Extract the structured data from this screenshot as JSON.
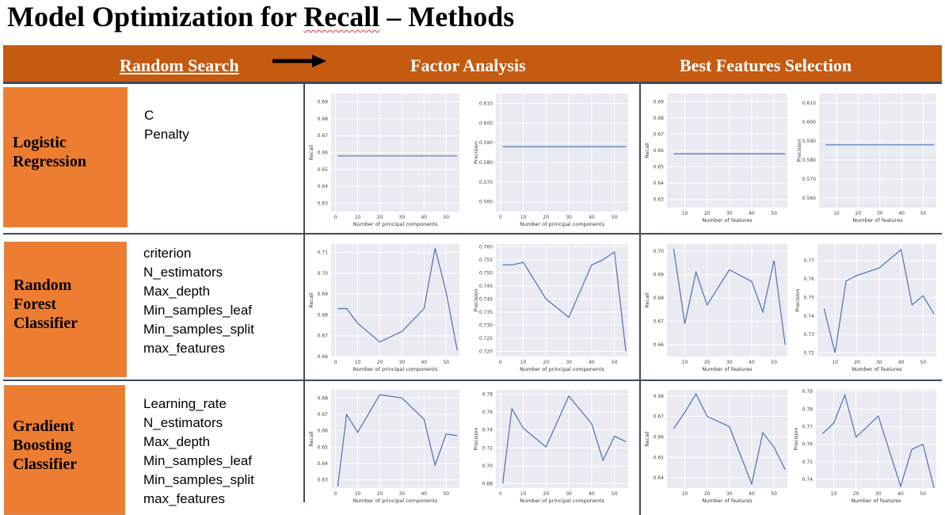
{
  "title": {
    "pre": "Model Optimization for ",
    "squiggle": "Recall",
    "post": "  – Methods"
  },
  "header": {
    "random_search": "Random Search",
    "factor_analysis": "Factor Analysis",
    "best_features": "Best Features Selection"
  },
  "rows": [
    {
      "label_lines": [
        "Logistic",
        "Regression"
      ],
      "params": [
        "C",
        "Penalty"
      ]
    },
    {
      "label_lines": [
        "Random",
        "Forest",
        "Classifier"
      ],
      "params": [
        "criterion",
        "N_estimators",
        "Max_depth",
        "Min_samples_leaf",
        "Min_samples_split",
        "max_features"
      ]
    },
    {
      "label_lines": [
        "Gradient",
        "Boosting",
        "Classifier"
      ],
      "params": [
        "Learning_rate",
        "N_estimators",
        "Max_depth",
        "Min_samples_leaf",
        "Min_samples_split",
        "max_features"
      ]
    }
  ],
  "colors": {
    "header_bar": "#c55a11",
    "row_label": "#ed7d31",
    "plot_bg": "#eaeaf2",
    "line": "#4c72b0"
  },
  "chart_data": [
    {
      "id": "lr-fa-recall",
      "type": "line",
      "xlabel": "Number of principal components",
      "ylabel": "Recall",
      "xlim": [
        -2,
        56
      ],
      "ylim": [
        0.625,
        0.695
      ],
      "xticks": [
        0,
        10,
        20,
        30,
        40,
        50
      ],
      "yticks": [
        0.63,
        0.64,
        0.65,
        0.66,
        0.67,
        0.68,
        0.69
      ],
      "x": [
        1,
        55
      ],
      "y": [
        0.658,
        0.658
      ]
    },
    {
      "id": "lr-fa-precision",
      "type": "line",
      "xlabel": "Number of principal components",
      "ylabel": "Precision",
      "xlim": [
        -2,
        56
      ],
      "ylim": [
        0.555,
        0.615
      ],
      "xticks": [
        0,
        10,
        20,
        30,
        40,
        50
      ],
      "yticks": [
        0.56,
        0.57,
        0.58,
        0.59,
        0.6,
        0.61
      ],
      "x": [
        1,
        55
      ],
      "y": [
        0.588,
        0.588
      ]
    },
    {
      "id": "lr-bf-recall",
      "type": "line",
      "xlabel": "Number of features",
      "ylabel": "Recall",
      "xlim": [
        2,
        56
      ],
      "ylim": [
        0.625,
        0.695
      ],
      "xticks": [
        10,
        20,
        30,
        40,
        50
      ],
      "yticks": [
        0.63,
        0.64,
        0.65,
        0.66,
        0.67,
        0.68,
        0.69
      ],
      "x": [
        5,
        55
      ],
      "y": [
        0.658,
        0.658
      ]
    },
    {
      "id": "lr-bf-precision",
      "type": "line",
      "xlabel": "Number of features",
      "ylabel": "Precision",
      "xlim": [
        2,
        56
      ],
      "ylim": [
        0.555,
        0.615
      ],
      "xticks": [
        10,
        20,
        30,
        40,
        50
      ],
      "yticks": [
        0.56,
        0.57,
        0.58,
        0.59,
        0.6,
        0.61
      ],
      "x": [
        5,
        55
      ],
      "y": [
        0.588,
        0.588
      ]
    },
    {
      "id": "rf-fa-recall",
      "type": "line",
      "xlabel": "Number of principal components",
      "ylabel": "Recall",
      "xlim": [
        -2,
        56
      ],
      "ylim": [
        0.66,
        0.714
      ],
      "xticks": [
        0,
        10,
        20,
        30,
        40,
        50
      ],
      "yticks": [
        0.66,
        0.67,
        0.68,
        0.69,
        0.7,
        0.71
      ],
      "x": [
        1,
        5,
        10,
        20,
        30,
        40,
        45,
        50,
        55
      ],
      "y": [
        0.683,
        0.683,
        0.676,
        0.667,
        0.672,
        0.683,
        0.712,
        0.691,
        0.663
      ]
    },
    {
      "id": "rf-fa-precision",
      "type": "line",
      "xlabel": "Number of principal components",
      "ylabel": "Precision",
      "xlim": [
        -2,
        56
      ],
      "ylim": [
        0.718,
        0.761
      ],
      "xticks": [
        0,
        10,
        20,
        30,
        40,
        50
      ],
      "yticks": [
        0.72,
        0.725,
        0.73,
        0.735,
        0.74,
        0.745,
        0.75,
        0.755,
        0.76
      ],
      "x": [
        1,
        5,
        10,
        20,
        30,
        40,
        45,
        50,
        55
      ],
      "y": [
        0.753,
        0.753,
        0.754,
        0.74,
        0.733,
        0.753,
        0.755,
        0.758,
        0.72
      ]
    },
    {
      "id": "rf-bf-recall",
      "type": "line",
      "xlabel": "Number of features",
      "ylabel": "Recall",
      "xlim": [
        2,
        56
      ],
      "ylim": [
        0.655,
        0.703
      ],
      "xticks": [
        10,
        20,
        30,
        40,
        50
      ],
      "yticks": [
        0.66,
        0.67,
        0.68,
        0.69,
        0.7
      ],
      "x": [
        5,
        10,
        15,
        20,
        30,
        40,
        45,
        50,
        55
      ],
      "y": [
        0.701,
        0.669,
        0.691,
        0.677,
        0.692,
        0.687,
        0.674,
        0.696,
        0.66
      ]
    },
    {
      "id": "rf-bf-precision",
      "type": "line",
      "xlabel": "Number of features",
      "ylabel": "Precision",
      "xlim": [
        2,
        56
      ],
      "ylim": [
        0.718,
        0.779
      ],
      "xticks": [
        10,
        20,
        30,
        40,
        50
      ],
      "yticks": [
        0.72,
        0.73,
        0.74,
        0.75,
        0.76,
        0.77
      ],
      "x": [
        5,
        10,
        15,
        20,
        30,
        40,
        45,
        50,
        55
      ],
      "y": [
        0.744,
        0.72,
        0.759,
        0.762,
        0.766,
        0.776,
        0.746,
        0.751,
        0.741
      ]
    },
    {
      "id": "gb-fa-recall",
      "type": "line",
      "xlabel": "Number of principal components",
      "ylabel": "Recall",
      "xlim": [
        -2,
        56
      ],
      "ylim": [
        0.625,
        0.685
      ],
      "xticks": [
        0,
        10,
        20,
        30,
        40,
        50
      ],
      "yticks": [
        0.63,
        0.64,
        0.65,
        0.66,
        0.67,
        0.68
      ],
      "x": [
        1,
        5,
        10,
        20,
        30,
        40,
        45,
        50,
        55
      ],
      "y": [
        0.626,
        0.67,
        0.659,
        0.682,
        0.68,
        0.667,
        0.639,
        0.658,
        0.657
      ]
    },
    {
      "id": "gb-fa-precision",
      "type": "line",
      "xlabel": "Number of principal components",
      "ylabel": "Precision",
      "xlim": [
        -2,
        56
      ],
      "ylim": [
        0.675,
        0.785
      ],
      "xticks": [
        0,
        10,
        20,
        30,
        40,
        50
      ],
      "yticks": [
        0.68,
        0.7,
        0.72,
        0.74,
        0.76,
        0.78
      ],
      "x": [
        1,
        5,
        10,
        20,
        30,
        40,
        45,
        50,
        55
      ],
      "y": [
        0.68,
        0.764,
        0.742,
        0.721,
        0.778,
        0.747,
        0.706,
        0.733,
        0.727
      ]
    },
    {
      "id": "gb-bf-recall",
      "type": "line",
      "xlabel": "Number of features",
      "ylabel": "Recall",
      "xlim": [
        2,
        56
      ],
      "ylim": [
        0.635,
        0.683
      ],
      "xticks": [
        10,
        20,
        30,
        40,
        50
      ],
      "yticks": [
        0.64,
        0.65,
        0.66,
        0.67,
        0.68
      ],
      "x": [
        5,
        10,
        15,
        20,
        30,
        40,
        45,
        50,
        55
      ],
      "y": [
        0.664,
        0.672,
        0.681,
        0.67,
        0.665,
        0.637,
        0.662,
        0.655,
        0.644
      ]
    },
    {
      "id": "gb-bf-precision",
      "type": "line",
      "xlabel": "Number of features",
      "ylabel": "Precision",
      "xlim": [
        2,
        56
      ],
      "ylim": [
        0.735,
        0.791
      ],
      "xticks": [
        10,
        20,
        30,
        40,
        50
      ],
      "yticks": [
        0.74,
        0.75,
        0.76,
        0.77,
        0.78,
        0.79
      ],
      "x": [
        5,
        10,
        15,
        20,
        30,
        40,
        45,
        50,
        55
      ],
      "y": [
        0.766,
        0.772,
        0.788,
        0.764,
        0.776,
        0.736,
        0.757,
        0.76,
        0.735
      ]
    }
  ]
}
